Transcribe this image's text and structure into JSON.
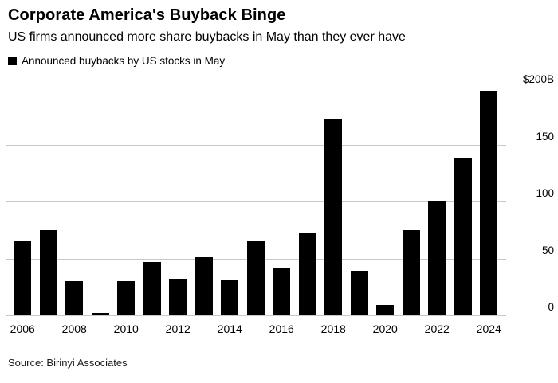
{
  "header": {
    "title": "Corporate America's Buyback Binge",
    "subtitle": "US firms announced more share buybacks in May than they ever have"
  },
  "legend": {
    "label": "Announced buybacks by US stocks in May",
    "swatch_color": "#000000"
  },
  "footer": {
    "source": "Source: Birinyi Associates"
  },
  "chart_data": {
    "type": "bar",
    "title": "Announced buybacks by US stocks in May",
    "unit": "billion USD",
    "categories": [
      "2006",
      "2007",
      "2008",
      "2009",
      "2010",
      "2011",
      "2012",
      "2013",
      "2014",
      "2015",
      "2016",
      "2017",
      "2018",
      "2019",
      "2020",
      "2021",
      "2022",
      "2023",
      "2024"
    ],
    "values": [
      65,
      75,
      30,
      2,
      30,
      47,
      32,
      51,
      31,
      65,
      42,
      72,
      172,
      39,
      9,
      75,
      100,
      138,
      197
    ],
    "ylim": [
      0,
      200
    ],
    "yticks": [
      {
        "value": 200,
        "label": "$200B"
      },
      {
        "value": 150,
        "label": "150"
      },
      {
        "value": 100,
        "label": "100"
      },
      {
        "value": 50,
        "label": "50"
      },
      {
        "value": 0,
        "label": "0"
      }
    ],
    "xticks": [
      "2006",
      "2008",
      "2010",
      "2012",
      "2014",
      "2016",
      "2018",
      "2020",
      "2022",
      "2024"
    ],
    "bar_color": "#000000",
    "grid_color": "#c9c9c9",
    "grid": true,
    "legend_position": "top-left",
    "ytick_side": "right"
  }
}
